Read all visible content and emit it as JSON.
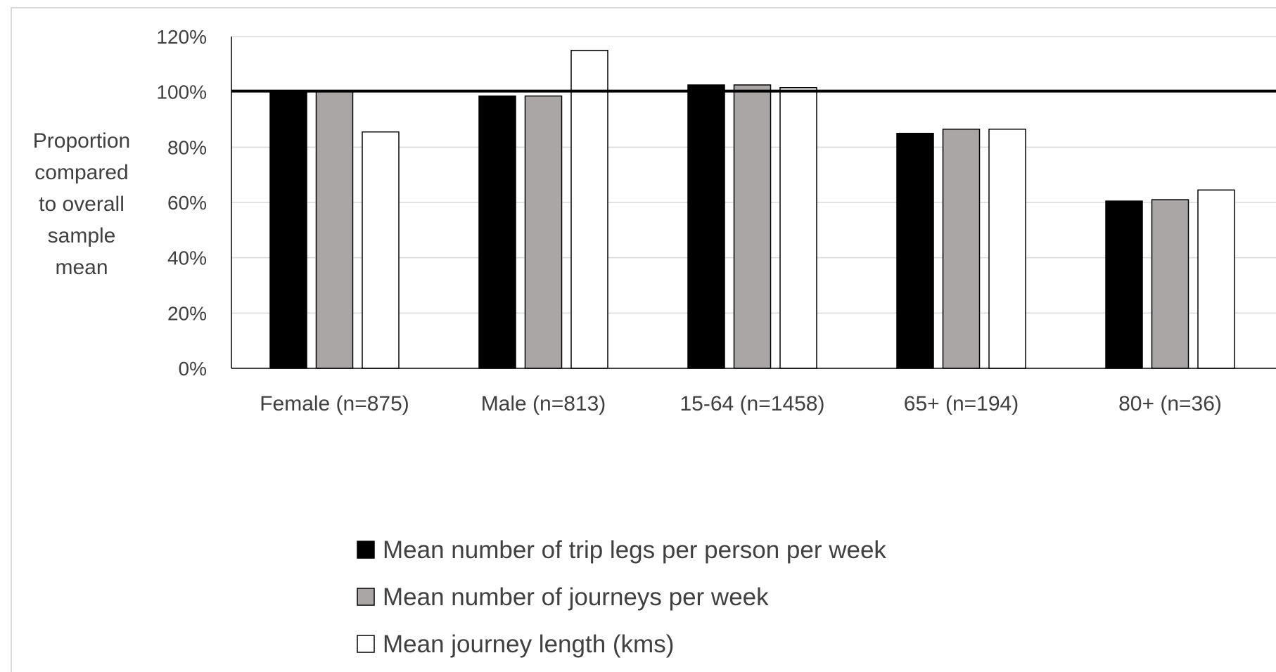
{
  "chart_data": {
    "type": "bar",
    "categories": [
      "Female (n=875)",
      "Male (n=813)",
      "15-64 (n=1458)",
      "65+ (n=194)",
      "80+ (n=36)"
    ],
    "series": [
      {
        "name": "Mean number of trip legs per person per week",
        "values": [
          100,
          98.5,
          102.5,
          85,
          60.5
        ],
        "color": "#000000"
      },
      {
        "name": "Mean number of journeys per week",
        "values": [
          100,
          98.5,
          102.5,
          86.5,
          61
        ],
        "color": "#aaa6a6"
      },
      {
        "name": "Mean journey  length (kms)",
        "values": [
          85.5,
          115,
          101.5,
          86.5,
          64.5
        ],
        "color": "#ffffff"
      }
    ],
    "y_ticks": [
      "0%",
      "20%",
      "40%",
      "60%",
      "80%",
      "100%",
      "120%"
    ],
    "ylim": [
      0,
      120
    ],
    "reference_line": 100,
    "ylabel_lines": [
      "Proportion",
      "compared",
      "to overall",
      "sample",
      "mean"
    ],
    "grid": true,
    "legend_position": "bottom"
  }
}
